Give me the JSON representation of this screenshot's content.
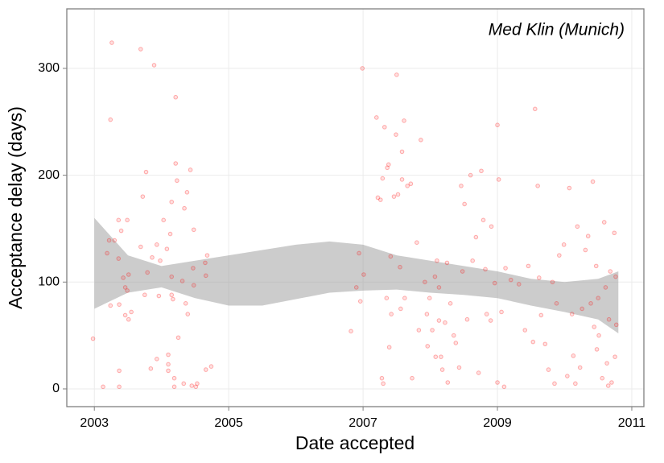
{
  "chart_data": {
    "type": "scatter",
    "annotation": "Med Klin (Munich)",
    "x_label": "Date accepted",
    "y_label": "Acceptance delay (days)",
    "xlim": [
      2002.59,
      2011.18
    ],
    "ylim": [
      -16.6,
      355.7
    ],
    "xticks": [
      2003,
      2005,
      2007,
      2009,
      2011
    ],
    "yticks": [
      0,
      100,
      200,
      300
    ],
    "grid": true,
    "color": "#ff0000",
    "band": {
      "color": "#999999",
      "x": [
        2003,
        2003.5,
        2004,
        2004.5,
        2005,
        2005.5,
        2006,
        2006.5,
        2007,
        2007.5,
        2008,
        2008.5,
        2009,
        2009.5,
        2010,
        2010.5,
        2010.8
      ],
      "lower": [
        75,
        90,
        95,
        85,
        78,
        78,
        84,
        90,
        92,
        93,
        90,
        88,
        85,
        78,
        72,
        65,
        52
      ],
      "upper": [
        160,
        125,
        115,
        120,
        125,
        130,
        135,
        138,
        135,
        125,
        120,
        115,
        110,
        103,
        100,
        103,
        110
      ]
    },
    "x": [
      2002.98,
      2003.13,
      2003.19,
      2003.22,
      2003.24,
      2003.24,
      2003.26,
      2003.3,
      2003.36,
      2003.36,
      2003.37,
      2003.37,
      2003.37,
      2003.4,
      2003.43,
      2003.46,
      2003.46,
      2003.49,
      2003.49,
      2003.51,
      2003.51,
      2003.55,
      2003.69,
      2003.69,
      2003.72,
      2003.75,
      2003.77,
      2003.79,
      2003.84,
      2003.86,
      2003.89,
      2003.93,
      2003.93,
      2003.96,
      2003.98,
      2004.03,
      2004.08,
      2004.1,
      2004.1,
      2004.1,
      2004.13,
      2004.15,
      2004.15,
      2004.15,
      2004.17,
      2004.19,
      2004.19,
      2004.21,
      2004.21,
      2004.23,
      2004.25,
      2004.31,
      2004.33,
      2004.34,
      2004.36,
      2004.38,
      2004.39,
      2004.43,
      2004.45,
      2004.47,
      2004.48,
      2004.48,
      2004.51,
      2004.53,
      2004.65,
      2004.66,
      2004.68,
      2004.66,
      2004.74,
      2006.82,
      2006.9,
      2006.94,
      2006.96,
      2006.99,
      2007.01,
      2007.2,
      2007.22,
      2007.26,
      2007.29,
      2007.28,
      2007.3,
      2007.32,
      2007.35,
      2007.36,
      2007.38,
      2007.41,
      2007.39,
      2007.42,
      2007.46,
      2007.49,
      2007.5,
      2007.52,
      2007.55,
      2007.56,
      2007.58,
      2007.58,
      2007.61,
      2007.62,
      2007.66,
      2007.71,
      2007.73,
      2007.8,
      2007.83,
      2007.86,
      2007.92,
      2007.95,
      2007.96,
      2007.99,
      2008.03,
      2008.07,
      2008.08,
      2008.1,
      2008.13,
      2008.13,
      2008.16,
      2008.18,
      2008.22,
      2008.25,
      2008.26,
      2008.3,
      2008.35,
      2008.38,
      2008.43,
      2008.46,
      2008.48,
      2008.51,
      2008.55,
      2008.6,
      2008.63,
      2008.68,
      2008.72,
      2008.76,
      2008.79,
      2008.82,
      2008.84,
      2008.9,
      2008.91,
      2008.96,
      2009.0,
      2009.0,
      2009.02,
      2009.06,
      2009.1,
      2009.12,
      2009.2,
      2009.32,
      2009.41,
      2009.46,
      2009.53,
      2009.56,
      2009.6,
      2009.62,
      2009.65,
      2009.71,
      2009.76,
      2009.82,
      2009.85,
      2009.88,
      2009.92,
      2009.99,
      2010.04,
      2010.07,
      2010.11,
      2010.13,
      2010.16,
      2010.19,
      2010.23,
      2010.26,
      2010.31,
      2010.35,
      2010.39,
      2010.42,
      2010.44,
      2010.47,
      2010.48,
      2010.5,
      2010.51,
      2010.56,
      2010.59,
      2010.61,
      2010.63,
      2010.65,
      2010.66,
      2010.68,
      2010.7,
      2010.74,
      2010.76,
      2010.75,
      2010.77
    ],
    "values": [
      47,
      2,
      127,
      139,
      78,
      252,
      324,
      139,
      158,
      122,
      17,
      2,
      79,
      148,
      104,
      95,
      69,
      158,
      92,
      107,
      65,
      72,
      133,
      318,
      180,
      88,
      203,
      109,
      19,
      123,
      303,
      135,
      28,
      87,
      120,
      158,
      131,
      17,
      32,
      23,
      145,
      175,
      105,
      88,
      84,
      10,
      2,
      273,
      211,
      195,
      48,
      101,
      5,
      169,
      80,
      184,
      70,
      205,
      3,
      113,
      97,
      149,
      2,
      5,
      118,
      106,
      125,
      18,
      21,
      54,
      95,
      127,
      82,
      300,
      107,
      254,
      179,
      177,
      197,
      10,
      5,
      245,
      85,
      207,
      210,
      124,
      39,
      70,
      180,
      238,
      294,
      182,
      114,
      75,
      196,
      222,
      251,
      85,
      190,
      192,
      10,
      137,
      55,
      233,
      100,
      70,
      40,
      85,
      55,
      105,
      30,
      120,
      64,
      95,
      30,
      18,
      62,
      118,
      6,
      80,
      50,
      43,
      20,
      190,
      110,
      173,
      65,
      200,
      120,
      142,
      15,
      204,
      158,
      112,
      70,
      64,
      152,
      99,
      247,
      6,
      196,
      72,
      2,
      113,
      102,
      98,
      55,
      115,
      44,
      262,
      190,
      104,
      69,
      42,
      18,
      100,
      5,
      80,
      125,
      135,
      12,
      188,
      70,
      31,
      5,
      152,
      20,
      75,
      130,
      143,
      80,
      194,
      58,
      115,
      37,
      85,
      50,
      10,
      156,
      95,
      24,
      3,
      65,
      110,
      6,
      146,
      105,
      30,
      60
    ]
  }
}
